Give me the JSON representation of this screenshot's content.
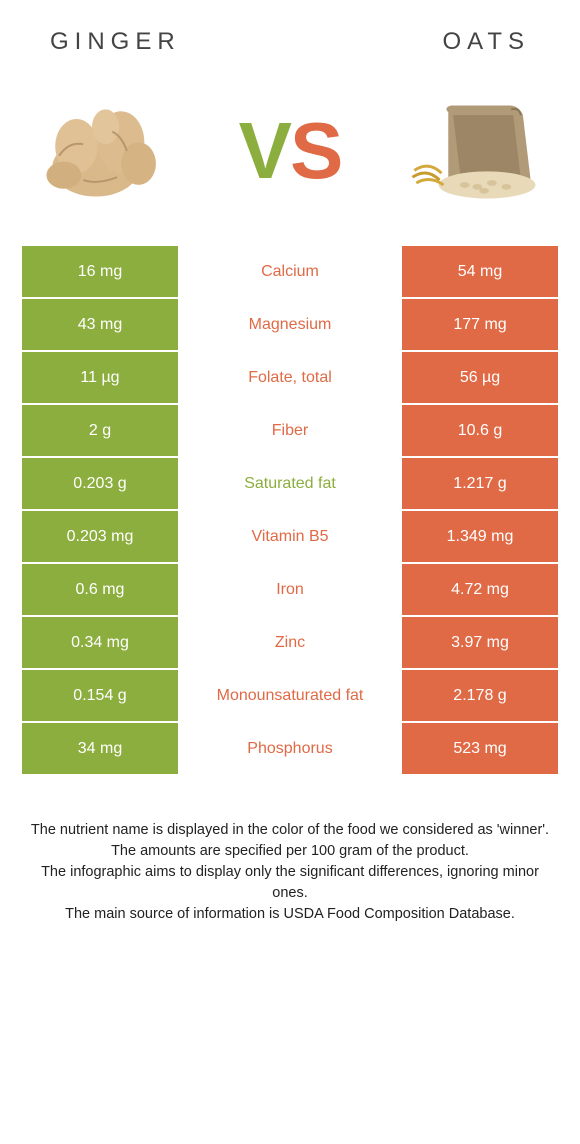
{
  "colors": {
    "left": "#8cae3e",
    "right": "#e06a45",
    "bg": "#ffffff",
    "title": "#444444",
    "footer": "#222222"
  },
  "foods": {
    "left": {
      "title": "GINGER"
    },
    "right": {
      "title": "OATS"
    }
  },
  "vs": {
    "v": "V",
    "s": "S"
  },
  "rows": [
    {
      "left": "16 mg",
      "label": "Calcium",
      "right": "54 mg",
      "winner": "right"
    },
    {
      "left": "43 mg",
      "label": "Magnesium",
      "right": "177 mg",
      "winner": "right"
    },
    {
      "left": "11 µg",
      "label": "Folate, total",
      "right": "56 µg",
      "winner": "right"
    },
    {
      "left": "2 g",
      "label": "Fiber",
      "right": "10.6 g",
      "winner": "right"
    },
    {
      "left": "0.203 g",
      "label": "Saturated fat",
      "right": "1.217 g",
      "winner": "left"
    },
    {
      "left": "0.203 mg",
      "label": "Vitamin B5",
      "right": "1.349 mg",
      "winner": "right"
    },
    {
      "left": "0.6 mg",
      "label": "Iron",
      "right": "4.72 mg",
      "winner": "right"
    },
    {
      "left": "0.34 mg",
      "label": "Zinc",
      "right": "3.97 mg",
      "winner": "right"
    },
    {
      "left": "0.154 g",
      "label": "Monounsaturated fat",
      "right": "2.178 g",
      "winner": "right"
    },
    {
      "left": "34 mg",
      "label": "Phosphorus",
      "right": "523 mg",
      "winner": "right"
    }
  ],
  "footer": {
    "l1": "The nutrient name is displayed in the color of the food we considered as 'winner'.",
    "l2": "The amounts are specified per 100 gram of the product.",
    "l3": "The infographic aims to display only the significant differences, ignoring minor ones.",
    "l4": "The main source of information is USDA Food Composition Database."
  }
}
